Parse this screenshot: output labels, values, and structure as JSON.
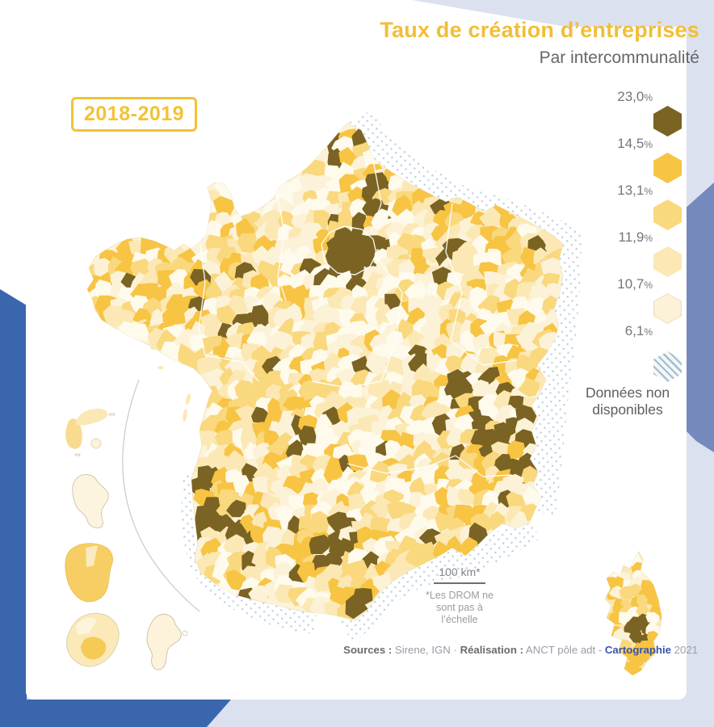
{
  "title": "Taux de création d’entreprises",
  "subtitle": "Par intercommunalité",
  "period_badge": "2018-2019",
  "legend": {
    "class_boundaries": [
      {
        "value": "23,0",
        "unit": "%"
      },
      {
        "value": "14,5",
        "unit": "%"
      },
      {
        "value": "13,1",
        "unit": "%"
      },
      {
        "value": "11,9",
        "unit": "%"
      },
      {
        "value": "10,7",
        "unit": "%"
      },
      {
        "value": "6,1",
        "unit": "%"
      }
    ],
    "class_colors": [
      "#7A6323",
      "#F7C443",
      "#F9D87E",
      "#FBE8B4",
      "#FCF2D7"
    ],
    "no_data": {
      "line1": "Données non",
      "line2": "disponibles",
      "hatch_color": "#A3BCCF"
    }
  },
  "scale_bar": {
    "label": "100 km*",
    "note_line1": "*Les DROM ne",
    "note_line2": "sont pas à l’échelle"
  },
  "credits": {
    "sources_label": "Sources :",
    "sources_value": " Sirene, IGN ",
    "separator": "· ",
    "realisation_label": "Réalisation :",
    "realisation_value": " ANCT pôle adt - ",
    "cartography_label": "Cartographie",
    "year": " 2021"
  },
  "colors": {
    "accent_gold": "#F3C236",
    "title_gold": "#F2BE37",
    "dark_blue": "#3A66AE",
    "medium_blue": "#7589BD",
    "lavender": "#DCE1EF",
    "halo_dot_blue": "#AFC4DB",
    "region_border_white": "#FFFFFF",
    "map_palette": {
      "darkest": "#7A6323",
      "gold": "#F7C443",
      "light_gold": "#F9D87E",
      "pale": "#FBE8B4",
      "cream": "#FCF2D7",
      "lightest": "#FEFAEC"
    }
  }
}
